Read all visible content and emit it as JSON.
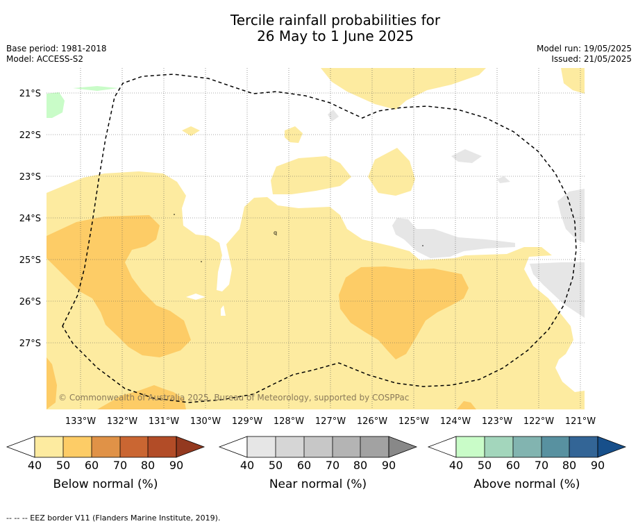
{
  "title_line1": "Tercile rainfall probabilities for",
  "title_line2": "26 May to 1 June 2025",
  "base_period": "Base period: 1981-2018",
  "model": "Model: ACCESS-S2",
  "model_run": "Model run: 19/05/2025",
  "issued": "Issued: 21/05/2025",
  "map": {
    "lat_labels": [
      "21°S",
      "22°S",
      "23°S",
      "24°S",
      "25°S",
      "26°S",
      "27°S"
    ],
    "lon_labels": [
      "133°W",
      "132°W",
      "131°W",
      "130°W",
      "129°W",
      "128°W",
      "127°W",
      "126°W",
      "125°W",
      "124°W",
      "123°W",
      "122°W",
      "121°W"
    ],
    "copyright": "© Commonwealth of Australia 2025, Bureau of Meteorology, supported by COSPPac",
    "colors": {
      "below_40": "#fdeba0",
      "below_50": "#fdcc66",
      "near_40": "#e6e6e6",
      "above_40": "#c9fcc8",
      "eez_line": "#000000"
    }
  },
  "colorbars": [
    {
      "label": "Below normal (%)",
      "ticks": [
        "40",
        "50",
        "60",
        "70",
        "80",
        "90"
      ],
      "colors": [
        "#fdeba0",
        "#fdcc66",
        "#e09247",
        "#ca6632",
        "#b24c27",
        "#93391f"
      ]
    },
    {
      "label": "Near normal (%)",
      "ticks": [
        "40",
        "50",
        "60",
        "70",
        "80",
        "90"
      ],
      "colors": [
        "#e6e6e6",
        "#d6d6d6",
        "#c7c7c7",
        "#b4b4b4",
        "#a2a2a2",
        "#888888"
      ]
    },
    {
      "label": "Above normal (%)",
      "ticks": [
        "40",
        "50",
        "60",
        "70",
        "80",
        "90"
      ],
      "colors": [
        "#c9fcc8",
        "#a3d6bc",
        "#82b4b0",
        "#5891a0",
        "#336596",
        "#174f8a"
      ]
    }
  ],
  "footer": "--  --  -- EEZ border V11 (Flanders Marine Institute, 2019)."
}
